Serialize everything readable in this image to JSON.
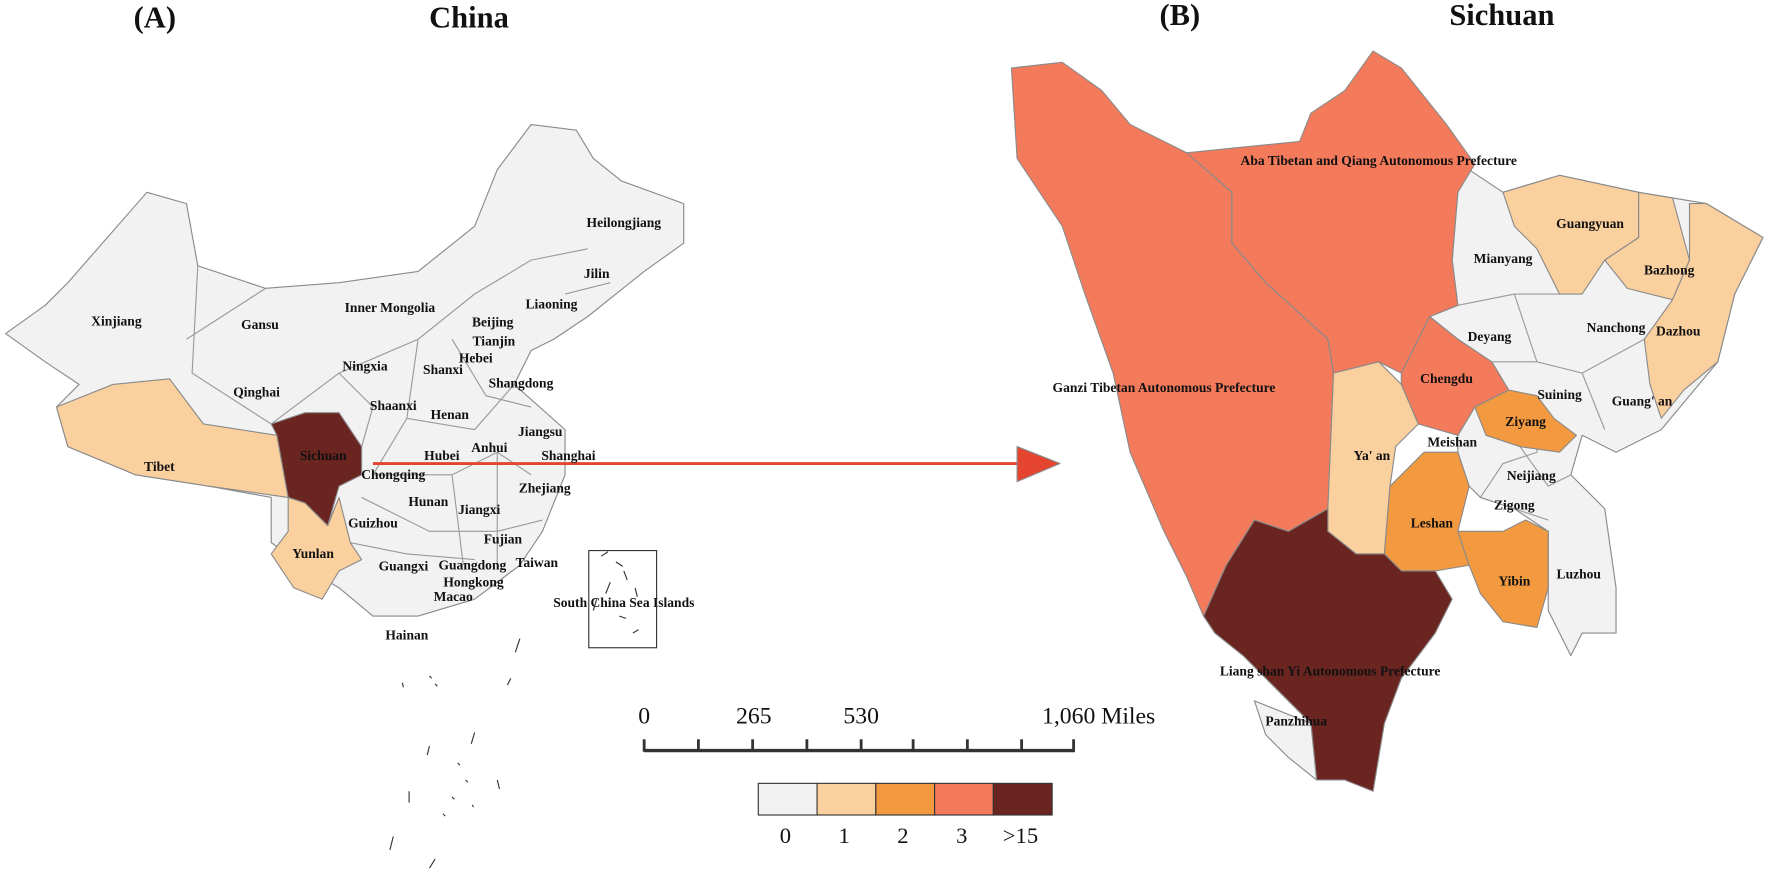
{
  "panel_a": {
    "label": "(A)",
    "title": "China",
    "base_color": "#f2f2f2",
    "regions": [
      {
        "name": "Xinjiang"
      },
      {
        "name": "Gansu"
      },
      {
        "name": "Inner Mongolia"
      },
      {
        "name": "Heilongjiang"
      },
      {
        "name": "Jilin"
      },
      {
        "name": "Liaoning"
      },
      {
        "name": "Beijing"
      },
      {
        "name": "Tianjin"
      },
      {
        "name": "Hebei"
      },
      {
        "name": "Ningxia"
      },
      {
        "name": "Shanxi"
      },
      {
        "name": "Shangdong"
      },
      {
        "name": "Qinghai"
      },
      {
        "name": "Shaanxi"
      },
      {
        "name": "Henan"
      },
      {
        "name": "Jiangsu"
      },
      {
        "name": "Tibet",
        "color": "#fbd09f"
      },
      {
        "name": "Sichuan",
        "color": "#6b2520"
      },
      {
        "name": "Hubei"
      },
      {
        "name": "Anhui"
      },
      {
        "name": "Shanghai"
      },
      {
        "name": "Chongqing"
      },
      {
        "name": "Hunan"
      },
      {
        "name": "Zhejiang"
      },
      {
        "name": "Jiangxi"
      },
      {
        "name": "Guizhou"
      },
      {
        "name": "Fujian"
      },
      {
        "name": "Yunlan",
        "color": "#fbd09f"
      },
      {
        "name": "Taiwan"
      },
      {
        "name": "Guangxi"
      },
      {
        "name": "Guangdong"
      },
      {
        "name": "Hongkong"
      },
      {
        "name": "Macao"
      },
      {
        "name": "Hainan"
      },
      {
        "name": "South China Sea Islands"
      }
    ]
  },
  "panel_b": {
    "label": "(B)",
    "title": "Sichuan",
    "base_color": "#f2f2f2",
    "regions": [
      {
        "name": "Aba Tibetan and Qiang Autonomous Prefecture",
        "color": "#f47a5c"
      },
      {
        "name": "Guangyuan",
        "color": "#fbd09f"
      },
      {
        "name": "Mianyang"
      },
      {
        "name": "Bazhong",
        "color": "#fbd09f"
      },
      {
        "name": "Nanchong"
      },
      {
        "name": "Dazhou",
        "color": "#fbd09f"
      },
      {
        "name": "Deyang"
      },
      {
        "name": "Ganzi Tibetan Autonomous Prefecture",
        "color": "#f47a5c"
      },
      {
        "name": "Chengdu",
        "color": "#f47a5c"
      },
      {
        "name": "Suining"
      },
      {
        "name": "Guang' an"
      },
      {
        "name": "Ziyang",
        "color": "#f3993f"
      },
      {
        "name": "Meishan"
      },
      {
        "name": "Ya' an",
        "color": "#fbd09f"
      },
      {
        "name": "Neijiang"
      },
      {
        "name": "Zigong"
      },
      {
        "name": "Leshan",
        "color": "#f3993f"
      },
      {
        "name": "Luzhou"
      },
      {
        "name": "Yibin",
        "color": "#f3993f"
      },
      {
        "name": "Liang shan Yi Autonomous Prefecture",
        "color": "#6b2520"
      },
      {
        "name": "Panzhihua"
      }
    ]
  },
  "scale_bar": {
    "labels": [
      "0",
      "265",
      "530",
      "1,060 Miles"
    ]
  },
  "legend": [
    {
      "label": "0",
      "color": "#f2f2f2"
    },
    {
      "label": "1",
      "color": "#fbd09f"
    },
    {
      "label": "2",
      "color": "#f3993f"
    },
    {
      "label": "3",
      "color": "#f47a5c"
    },
    {
      "label": ">15",
      "color": "#6b2520"
    }
  ],
  "arrow_color": "#e5452e"
}
